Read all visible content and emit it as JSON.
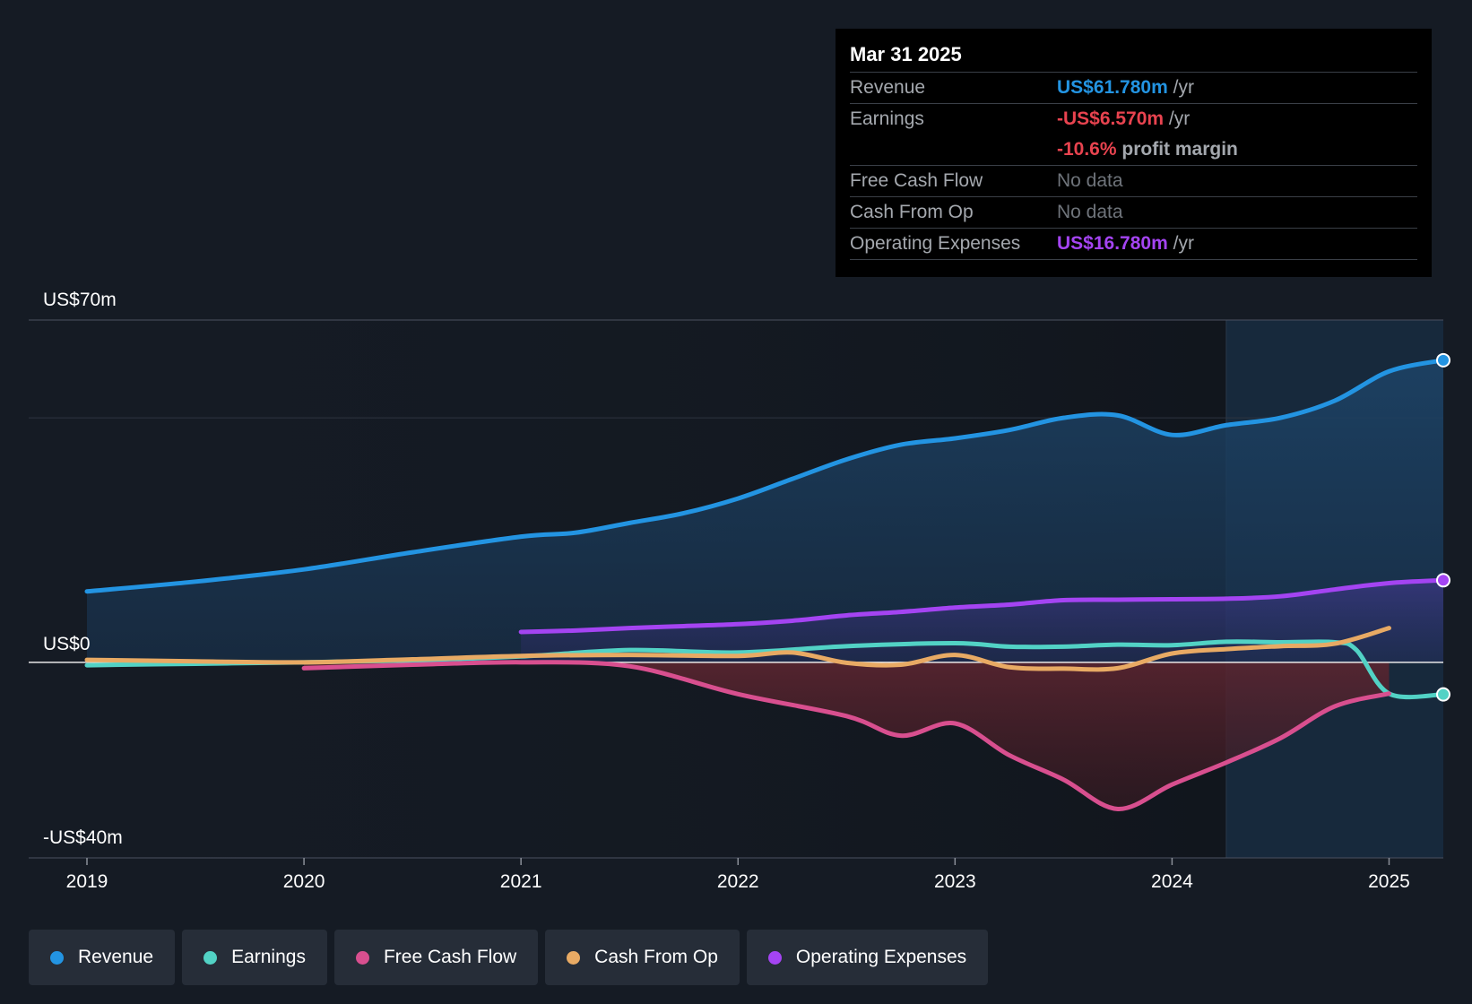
{
  "chart_data": {
    "type": "area",
    "y_tick_labels": [
      "US$70m",
      "US$0",
      "-US$40m"
    ],
    "ylim": [
      -40,
      70
    ],
    "xlim": [
      2019.0,
      2025.25
    ],
    "x_tick_labels": [
      "2019",
      "2020",
      "2021",
      "2022",
      "2023",
      "2024",
      "2025"
    ],
    "x_tick_values": [
      2019,
      2020,
      2021,
      2022,
      2023,
      2024,
      2025
    ],
    "forecast_start": 2024.25,
    "series": [
      {
        "name": "Revenue",
        "color": "#2394e2",
        "fill": true,
        "points": [
          [
            2019.0,
            14.5
          ],
          [
            2019.5,
            16.5
          ],
          [
            2020.0,
            19.0
          ],
          [
            2020.5,
            22.5
          ],
          [
            2021.0,
            25.7
          ],
          [
            2021.25,
            26.5
          ],
          [
            2021.5,
            28.5
          ],
          [
            2021.75,
            30.5
          ],
          [
            2022.0,
            33.5
          ],
          [
            2022.25,
            37.5
          ],
          [
            2022.5,
            41.5
          ],
          [
            2022.75,
            44.5
          ],
          [
            2023.0,
            45.8
          ],
          [
            2023.25,
            47.5
          ],
          [
            2023.5,
            50.0
          ],
          [
            2023.75,
            50.5
          ],
          [
            2024.0,
            46.5
          ],
          [
            2024.25,
            48.5
          ],
          [
            2024.5,
            50.0
          ],
          [
            2024.75,
            53.5
          ],
          [
            2025.0,
            59.5
          ],
          [
            2025.25,
            61.78
          ]
        ],
        "end_marker": true
      },
      {
        "name": "Operating Expenses",
        "color": "#a444f2",
        "fill": true,
        "points": [
          [
            2021.0,
            6.2
          ],
          [
            2021.25,
            6.5
          ],
          [
            2021.5,
            7.0
          ],
          [
            2021.75,
            7.4
          ],
          [
            2022.0,
            7.8
          ],
          [
            2022.25,
            8.5
          ],
          [
            2022.5,
            9.6
          ],
          [
            2022.75,
            10.3
          ],
          [
            2023.0,
            11.2
          ],
          [
            2023.25,
            11.8
          ],
          [
            2023.5,
            12.7
          ],
          [
            2023.75,
            12.8
          ],
          [
            2024.0,
            12.9
          ],
          [
            2024.25,
            13.0
          ],
          [
            2024.5,
            13.5
          ],
          [
            2024.75,
            14.9
          ],
          [
            2025.0,
            16.2
          ],
          [
            2025.25,
            16.78
          ]
        ],
        "end_marker": true
      },
      {
        "name": "Earnings",
        "color": "#52d2c5",
        "fill": false,
        "points": [
          [
            2019.0,
            -0.6
          ],
          [
            2019.5,
            -0.3
          ],
          [
            2020.0,
            0
          ],
          [
            2020.5,
            0.4
          ],
          [
            2021.0,
            1.2
          ],
          [
            2021.5,
            2.5
          ],
          [
            2022.0,
            2.0
          ],
          [
            2022.5,
            3.3
          ],
          [
            2023.0,
            3.9
          ],
          [
            2023.25,
            3.2
          ],
          [
            2023.5,
            3.2
          ],
          [
            2023.75,
            3.6
          ],
          [
            2024.0,
            3.5
          ],
          [
            2024.25,
            4.2
          ],
          [
            2024.5,
            4.1
          ],
          [
            2024.75,
            4.1
          ],
          [
            2024.85,
            2.5
          ],
          [
            2025.0,
            -6.4
          ],
          [
            2025.25,
            -6.57
          ]
        ],
        "end_marker": true
      },
      {
        "name": "Free Cash Flow",
        "color": "#d84f8f",
        "fill": true,
        "points": [
          [
            2020.0,
            -1.2
          ],
          [
            2020.5,
            -0.5
          ],
          [
            2021.0,
            0
          ],
          [
            2021.5,
            -0.8
          ],
          [
            2022.0,
            -6.5
          ],
          [
            2022.5,
            -11.0
          ],
          [
            2022.75,
            -15.0
          ],
          [
            2023.0,
            -12.5
          ],
          [
            2023.25,
            -19.0
          ],
          [
            2023.5,
            -24.0
          ],
          [
            2023.75,
            -30.0
          ],
          [
            2024.0,
            -25.0
          ],
          [
            2024.25,
            -20.5
          ],
          [
            2024.5,
            -15.5
          ],
          [
            2024.75,
            -9.0
          ],
          [
            2025.0,
            -6.4
          ]
        ],
        "end_marker": false
      },
      {
        "name": "Cash From Op",
        "color": "#e8aa64",
        "fill": false,
        "points": [
          [
            2019.0,
            0.5
          ],
          [
            2019.5,
            0.2
          ],
          [
            2020.0,
            0
          ],
          [
            2020.5,
            0.6
          ],
          [
            2021.0,
            1.3
          ],
          [
            2021.5,
            1.5
          ],
          [
            2022.0,
            1.3
          ],
          [
            2022.25,
            2.0
          ],
          [
            2022.5,
            -0.1
          ],
          [
            2022.75,
            -0.5
          ],
          [
            2023.0,
            1.5
          ],
          [
            2023.25,
            -1.0
          ],
          [
            2023.5,
            -1.3
          ],
          [
            2023.75,
            -1.2
          ],
          [
            2024.0,
            1.8
          ],
          [
            2024.25,
            2.7
          ],
          [
            2024.5,
            3.3
          ],
          [
            2024.75,
            3.8
          ],
          [
            2025.0,
            7.0
          ]
        ],
        "end_marker": false
      }
    ]
  },
  "tooltip": {
    "date": "Mar 31 2025",
    "revenue_label": "Revenue",
    "revenue_value": "US$61.780m",
    "revenue_unit": "/yr",
    "earnings_label": "Earnings",
    "earnings_value": "-US$6.570m",
    "earnings_unit": "/yr",
    "margin_value": "-10.6%",
    "margin_text": "profit margin",
    "fcf_label": "Free Cash Flow",
    "fcf_value": "No data",
    "cfo_label": "Cash From Op",
    "cfo_value": "No data",
    "opex_label": "Operating Expenses",
    "opex_value": "US$16.780m",
    "opex_unit": "/yr",
    "colors": {
      "revenue": "#2394e2",
      "earnings": "#e8434f",
      "opex": "#a444f2"
    }
  },
  "legend": {
    "items": [
      {
        "label": "Revenue",
        "color": "#2394e2"
      },
      {
        "label": "Earnings",
        "color": "#52d2c5"
      },
      {
        "label": "Free Cash Flow",
        "color": "#d84f8f"
      },
      {
        "label": "Cash From Op",
        "color": "#e8aa64"
      },
      {
        "label": "Operating Expenses",
        "color": "#a444f2"
      }
    ]
  }
}
